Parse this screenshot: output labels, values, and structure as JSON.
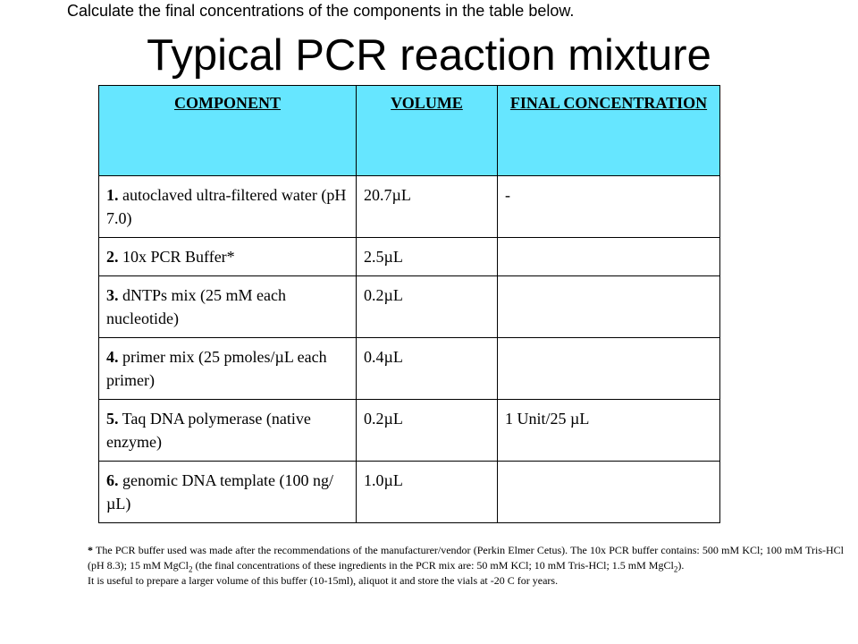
{
  "instruction": "Calculate the final concentrations of the components in the table below.",
  "title": "Typical PCR reaction mixture",
  "table": {
    "headers": [
      "COMPONENT",
      "VOLUME",
      "FINAL CONCENTRATION"
    ],
    "rows": [
      {
        "num": "1.",
        "component": " autoclaved ultra-filtered water (pH 7.0)",
        "volume": "20.7µL",
        "final": "-"
      },
      {
        "num": "2.",
        "component": " 10x PCR Buffer*",
        "volume": "2.5µL",
        "final": ""
      },
      {
        "num": "3.",
        "component": " dNTPs mix (25 mM each nucleotide)",
        "volume": "0.2µL",
        "final": ""
      },
      {
        "num": "4.",
        "component": " primer mix (25 pmoles/µL each primer)",
        "volume": "0.4µL",
        "final": ""
      },
      {
        "num": "5.",
        "component": " Taq DNA polymerase (native enzyme)",
        "volume": "0.2µL",
        "final": "1 Unit/25 µL"
      },
      {
        "num": "6.",
        "component": " genomic DNA template (100 ng/µL)",
        "volume": "1.0µL",
        "final": ""
      }
    ]
  },
  "footnote": {
    "star": "*",
    "p1_a": " The PCR buffer used was made after the recommendations of the manufacturer/vendor (Perkin Elmer Cetus). The 10x PCR buffer contains: 500 mM KCl; 100 mM Tris-HCl (pH 8.3); 15 mM MgCl",
    "sub": "2",
    "p1_b": " (the final concentrations of these ingredients in the PCR mix are: 50 mM KCl; 10 mM Tris-HCl; 1.5 mM MgCl",
    "p1_c": ").",
    "p2": "It is useful to prepare a larger volume of this buffer (10-15ml), aliquot it and store the vials at -20 C for years."
  }
}
